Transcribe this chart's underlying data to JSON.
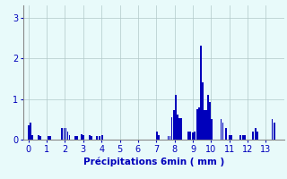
{
  "xlabel": "Précipitations 6min ( mm )",
  "bar_color": "#0000bb",
  "background_color": "#e8fafa",
  "grid_color": "#b0c8c8",
  "text_color": "#0000bb",
  "xlim": [
    -0.3,
    14.0
  ],
  "ylim": [
    0,
    3.3
  ],
  "yticks": [
    0,
    1,
    2,
    3
  ],
  "xticks": [
    0,
    1,
    2,
    3,
    4,
    5,
    6,
    7,
    8,
    9,
    10,
    11,
    12,
    13
  ],
  "bar_width": 0.09,
  "bar_data": [
    [
      0.0,
      0.36
    ],
    [
      0.1,
      0.42
    ],
    [
      0.2,
      0.1
    ],
    [
      0.55,
      0.11
    ],
    [
      0.65,
      0.08
    ],
    [
      1.1,
      0.08
    ],
    [
      1.2,
      0.08
    ],
    [
      1.85,
      0.28
    ],
    [
      1.95,
      0.28
    ],
    [
      2.05,
      0.28
    ],
    [
      2.15,
      0.2
    ],
    [
      2.25,
      0.1
    ],
    [
      2.55,
      0.08
    ],
    [
      2.65,
      0.08
    ],
    [
      2.9,
      0.14
    ],
    [
      3.0,
      0.12
    ],
    [
      3.35,
      0.1
    ],
    [
      3.45,
      0.08
    ],
    [
      3.75,
      0.08
    ],
    [
      3.9,
      0.08
    ],
    [
      4.05,
      0.12
    ],
    [
      7.05,
      0.2
    ],
    [
      7.15,
      0.12
    ],
    [
      7.65,
      0.08
    ],
    [
      7.75,
      0.08
    ],
    [
      7.85,
      0.55
    ],
    [
      7.95,
      0.72
    ],
    [
      8.05,
      1.1
    ],
    [
      8.15,
      0.62
    ],
    [
      8.25,
      0.52
    ],
    [
      8.35,
      0.52
    ],
    [
      8.75,
      0.2
    ],
    [
      8.85,
      0.2
    ],
    [
      9.0,
      0.18
    ],
    [
      9.1,
      0.2
    ],
    [
      9.25,
      0.75
    ],
    [
      9.35,
      0.8
    ],
    [
      9.45,
      2.3
    ],
    [
      9.55,
      1.4
    ],
    [
      9.65,
      0.72
    ],
    [
      9.75,
      0.72
    ],
    [
      9.85,
      1.1
    ],
    [
      9.95,
      0.92
    ],
    [
      10.05,
      0.5
    ],
    [
      10.55,
      0.5
    ],
    [
      10.65,
      0.42
    ],
    [
      10.8,
      0.28
    ],
    [
      11.0,
      0.1
    ],
    [
      11.1,
      0.1
    ],
    [
      11.6,
      0.1
    ],
    [
      11.75,
      0.1
    ],
    [
      11.85,
      0.1
    ],
    [
      12.3,
      0.2
    ],
    [
      12.45,
      0.28
    ],
    [
      12.55,
      0.2
    ],
    [
      13.35,
      0.5
    ],
    [
      13.45,
      0.42
    ]
  ]
}
